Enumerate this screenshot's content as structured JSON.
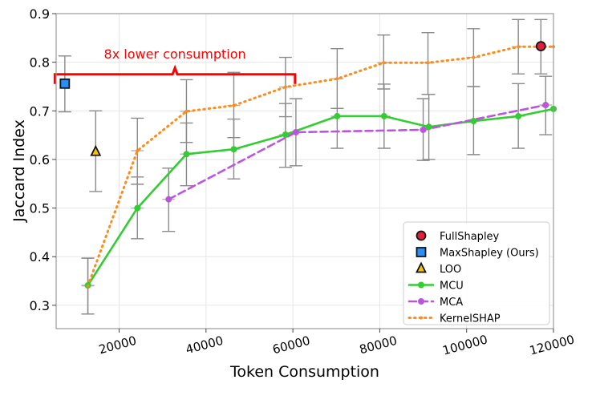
{
  "chart_data": {
    "type": "line",
    "title": "",
    "xlabel": "Token Consumption",
    "ylabel": "Jaccard Index",
    "xlim": [
      5500,
      120000
    ],
    "ylim": [
      0.252,
      0.9
    ],
    "xticks": [
      20000,
      40000,
      60000,
      80000,
      100000,
      120000
    ],
    "yticks": [
      0.3,
      0.4,
      0.5,
      0.6,
      0.7,
      0.8,
      0.9
    ],
    "grid": true,
    "legend_position": "bottom-right",
    "annotation": {
      "text": "8x lower consumption",
      "bracket_x": [
        5200,
        60500
      ],
      "bracket_y": 0.775,
      "color": "#ff0000"
    },
    "series": [
      {
        "name": "FullShapley",
        "kind": "marker",
        "marker": "circle",
        "color": "#e0203a",
        "points": [
          {
            "x": 117100,
            "y": 0.833,
            "lo": 0.776,
            "hi": 0.888
          }
        ]
      },
      {
        "name": "MaxShapley (Ours)",
        "kind": "marker",
        "marker": "square",
        "color": "#2b8ff0",
        "points": [
          {
            "x": 7500,
            "y": 0.756,
            "lo": 0.698,
            "hi": 0.813
          }
        ]
      },
      {
        "name": "LOO",
        "kind": "marker",
        "marker": "triangle",
        "color": "#f5c400",
        "points": [
          {
            "x": 14600,
            "y": 0.616,
            "lo": 0.534,
            "hi": 0.7
          }
        ]
      },
      {
        "name": "MCU",
        "kind": "line",
        "style": "solid",
        "marker": "pentagon",
        "color": "#33cc33",
        "points": [
          {
            "x": 12800,
            "y": 0.341,
            "lo": 0.282,
            "hi": 0.397
          },
          {
            "x": 24200,
            "y": 0.5,
            "lo": 0.437,
            "hi": 0.564
          },
          {
            "x": 35500,
            "y": 0.611,
            "lo": 0.546,
            "hi": 0.675
          },
          {
            "x": 46400,
            "y": 0.621,
            "lo": 0.56,
            "hi": 0.683
          },
          {
            "x": 58300,
            "y": 0.651,
            "lo": 0.584,
            "hi": 0.715
          },
          {
            "x": 70200,
            "y": 0.689,
            "lo": 0.623,
            "hi": 0.705
          },
          {
            "x": 81000,
            "y": 0.689,
            "lo": 0.623,
            "hi": 0.755
          },
          {
            "x": 91300,
            "y": 0.667,
            "lo": 0.6,
            "hi": 0.734
          },
          {
            "x": 101600,
            "y": 0.679,
            "lo": 0.61,
            "hi": 0.75
          },
          {
            "x": 111900,
            "y": 0.689,
            "lo": 0.623,
            "hi": 0.756
          },
          {
            "x": 120000,
            "y": 0.704
          }
        ]
      },
      {
        "name": "MCA",
        "kind": "line",
        "style": "dashed",
        "marker": "hexagon",
        "color": "#bb55dd",
        "points": [
          {
            "x": 31400,
            "y": 0.518,
            "lo": 0.452,
            "hi": 0.582
          },
          {
            "x": 60700,
            "y": 0.656,
            "lo": 0.587,
            "hi": 0.725
          },
          {
            "x": 90000,
            "y": 0.661,
            "lo": 0.598,
            "hi": 0.725
          },
          {
            "x": 118200,
            "y": 0.712,
            "lo": 0.651,
            "hi": 0.771
          }
        ]
      },
      {
        "name": "KernelSHAP",
        "kind": "line",
        "style": "dotted",
        "marker": "x",
        "color": "#ff8c1a",
        "points": [
          {
            "x": 12800,
            "y": 0.34,
            "lo": 0.282,
            "hi": 0.397
          },
          {
            "x": 24200,
            "y": 0.618,
            "lo": 0.549,
            "hi": 0.685
          },
          {
            "x": 35500,
            "y": 0.699,
            "lo": 0.635,
            "hi": 0.764
          },
          {
            "x": 46400,
            "y": 0.711,
            "lo": 0.645,
            "hi": 0.779
          },
          {
            "x": 58300,
            "y": 0.749,
            "lo": 0.688,
            "hi": 0.81
          },
          {
            "x": 70200,
            "y": 0.766,
            "lo": 0.705,
            "hi": 0.828
          },
          {
            "x": 80900,
            "y": 0.799,
            "lo": 0.745,
            "hi": 0.856
          },
          {
            "x": 91100,
            "y": 0.799,
            "lo": 0.734,
            "hi": 0.861
          },
          {
            "x": 101600,
            "y": 0.81,
            "lo": 0.75,
            "hi": 0.869
          },
          {
            "x": 111900,
            "y": 0.832,
            "lo": 0.776,
            "hi": 0.888
          },
          {
            "x": 120000,
            "y": 0.832
          }
        ]
      }
    ]
  }
}
